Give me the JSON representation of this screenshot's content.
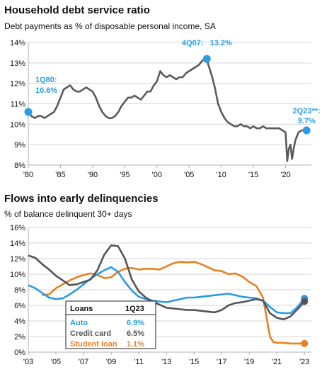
{
  "chart_data": [
    {
      "type": "line",
      "title": "Household debt service ratio",
      "subtitle": "Debt payments as % of disposable personal income, SA",
      "x_tick_labels": [
        "'80",
        "'85",
        "'90",
        "'95",
        "'00",
        "'05",
        "'10",
        "'15",
        "'20"
      ],
      "x_tick_years": [
        1980,
        1985,
        1990,
        1995,
        2000,
        2005,
        2010,
        2015,
        2020
      ],
      "xlim": [
        1980,
        2024
      ],
      "y_ticks": [
        8,
        9,
        10,
        11,
        12,
        13,
        14
      ],
      "y_tick_labels": [
        "8%",
        "9%",
        "10%",
        "11%",
        "12%",
        "13%",
        "14%"
      ],
      "ylim": [
        8,
        14
      ],
      "grid": true,
      "colors": {
        "line": "#5a5a5a",
        "marker": "#2a9be6"
      },
      "series": [
        {
          "x": [
            1980.0,
            1980.5,
            1981.0,
            1981.5,
            1982.0,
            1982.5,
            1983.0,
            1983.5,
            1984.0,
            1984.5,
            1985.0,
            1985.5,
            1986.0,
            1986.5,
            1987.0,
            1987.5,
            1988.0,
            1988.5,
            1989.0,
            1989.5,
            1990.0,
            1990.5,
            1991.0,
            1991.5,
            1992.0,
            1992.5,
            1993.0,
            1993.5,
            1994.0,
            1994.5,
            1995.0,
            1995.5,
            1996.0,
            1996.5,
            1997.0,
            1997.5,
            1998.0,
            1998.5,
            1999.0,
            1999.5,
            2000.0,
            2000.5,
            2001.0,
            2001.5,
            2002.0,
            2002.5,
            2003.0,
            2003.5,
            2004.0,
            2004.5,
            2005.0,
            2005.5,
            2006.0,
            2006.5,
            2007.0,
            2007.5,
            2007.75,
            2008.0,
            2008.5,
            2009.0,
            2009.5,
            2010.0,
            2010.5,
            2011.0,
            2011.5,
            2012.0,
            2012.5,
            2013.0,
            2013.5,
            2014.0,
            2014.5,
            2015.0,
            2015.5,
            2016.0,
            2016.5,
            2017.0,
            2017.5,
            2018.0,
            2018.5,
            2019.0,
            2019.5,
            2020.0,
            2020.25,
            2020.5,
            2020.75,
            2021.0,
            2021.25,
            2021.5,
            2022.0,
            2022.5,
            2023.0,
            2023.25
          ],
          "values": [
            10.6,
            10.4,
            10.3,
            10.4,
            10.4,
            10.3,
            10.4,
            10.5,
            10.6,
            10.9,
            11.3,
            11.7,
            11.8,
            11.9,
            11.7,
            11.6,
            11.6,
            11.7,
            11.8,
            11.7,
            11.6,
            11.3,
            10.9,
            10.6,
            10.4,
            10.3,
            10.3,
            10.4,
            10.6,
            10.9,
            11.1,
            11.3,
            11.3,
            11.4,
            11.3,
            11.2,
            11.4,
            11.6,
            11.6,
            11.9,
            12.1,
            12.6,
            12.4,
            12.3,
            12.4,
            12.3,
            12.2,
            12.3,
            12.3,
            12.5,
            12.6,
            12.7,
            12.8,
            12.9,
            13.1,
            13.2,
            13.2,
            12.9,
            12.4,
            11.8,
            11.0,
            10.6,
            10.3,
            10.1,
            10.0,
            9.9,
            9.9,
            10.0,
            9.9,
            9.9,
            9.8,
            9.9,
            9.8,
            9.8,
            9.9,
            9.8,
            9.8,
            9.8,
            9.8,
            9.8,
            9.7,
            9.6,
            8.2,
            8.8,
            9.0,
            8.3,
            8.8,
            9.2,
            9.6,
            9.7,
            9.7,
            9.7
          ]
        }
      ],
      "annotations": [
        {
          "label": "1Q80:",
          "value_label": "10.6%",
          "x": 1980.0,
          "y": 10.6
        },
        {
          "label": "4Q07:",
          "value_label": "13.2%",
          "x": 2007.75,
          "y": 13.2
        },
        {
          "label": "2Q23**:",
          "value_label": "9.7%",
          "x": 2023.25,
          "y": 9.7
        }
      ]
    },
    {
      "type": "line",
      "title": "Flows into early delinquencies",
      "subtitle": "% of balance delinquent 30+ days",
      "x_tick_labels": [
        "'03",
        "'05",
        "'07",
        "'09",
        "'11",
        "'13",
        "'15",
        "'17",
        "'19",
        "'21",
        "'23"
      ],
      "x_tick_years": [
        2003,
        2005,
        2007,
        2009,
        2011,
        2013,
        2015,
        2017,
        2019,
        2021,
        2023
      ],
      "xlim": [
        2003,
        2023.5
      ],
      "y_ticks": [
        0,
        2,
        4,
        6,
        8,
        10,
        12,
        14,
        16
      ],
      "y_tick_labels": [
        "0%",
        "2%",
        "4%",
        "6%",
        "8%",
        "10%",
        "12%",
        "14%",
        "16%"
      ],
      "ylim": [
        0,
        16
      ],
      "grid": true,
      "series": [
        {
          "name": "Auto",
          "color": "#2a9be6",
          "x": [
            2003.0,
            2003.5,
            2004.0,
            2004.5,
            2005.0,
            2005.5,
            2006.0,
            2006.5,
            2007.0,
            2007.5,
            2008.0,
            2008.5,
            2009.0,
            2009.5,
            2010.0,
            2010.5,
            2011.0,
            2011.5,
            2012.0,
            2012.5,
            2013.0,
            2013.5,
            2014.0,
            2014.5,
            2015.0,
            2015.5,
            2016.0,
            2016.5,
            2017.0,
            2017.5,
            2018.0,
            2018.5,
            2019.0,
            2019.5,
            2020.0,
            2020.5,
            2021.0,
            2021.5,
            2022.0,
            2022.5,
            2023.0
          ],
          "values": [
            8.6,
            8.2,
            7.6,
            7.0,
            6.8,
            6.9,
            7.4,
            8.0,
            8.7,
            9.4,
            10.0,
            10.5,
            10.9,
            10.3,
            9.0,
            7.9,
            7.1,
            6.8,
            6.6,
            6.5,
            6.4,
            6.6,
            6.8,
            7.0,
            7.0,
            7.1,
            7.2,
            7.3,
            7.4,
            7.5,
            7.3,
            7.1,
            7.0,
            6.9,
            6.6,
            5.8,
            5.1,
            5.0,
            5.0,
            5.8,
            6.9
          ]
        },
        {
          "name": "Credit card",
          "color": "#555555",
          "x": [
            2003.0,
            2003.5,
            2004.0,
            2004.5,
            2005.0,
            2005.5,
            2006.0,
            2006.5,
            2007.0,
            2007.5,
            2008.0,
            2008.5,
            2009.0,
            2009.5,
            2010.0,
            2010.5,
            2011.0,
            2011.5,
            2012.0,
            2012.5,
            2013.0,
            2013.5,
            2014.0,
            2014.5,
            2015.0,
            2015.5,
            2016.0,
            2016.5,
            2017.0,
            2017.5,
            2018.0,
            2018.5,
            2019.0,
            2019.5,
            2020.0,
            2020.5,
            2021.0,
            2021.5,
            2022.0,
            2022.5,
            2023.0
          ],
          "values": [
            12.4,
            12.1,
            11.3,
            10.6,
            9.8,
            9.2,
            8.6,
            8.7,
            9.0,
            9.3,
            10.5,
            12.5,
            13.7,
            13.6,
            12.0,
            9.3,
            7.8,
            7.0,
            6.5,
            6.1,
            5.7,
            5.6,
            5.5,
            5.4,
            5.4,
            5.3,
            5.2,
            5.1,
            5.4,
            6.0,
            6.3,
            6.4,
            6.6,
            6.8,
            6.6,
            5.0,
            4.4,
            4.2,
            4.6,
            5.5,
            6.5
          ]
        },
        {
          "name": "Student loan",
          "color": "#e8801c",
          "x": [
            2004.0,
            2004.5,
            2005.0,
            2005.5,
            2006.0,
            2006.5,
            2007.0,
            2007.5,
            2008.0,
            2008.5,
            2009.0,
            2009.5,
            2010.0,
            2010.5,
            2011.0,
            2011.5,
            2012.0,
            2012.5,
            2013.0,
            2013.5,
            2014.0,
            2014.5,
            2015.0,
            2015.5,
            2016.0,
            2016.5,
            2017.0,
            2017.5,
            2018.0,
            2018.5,
            2019.0,
            2019.5,
            2020.0,
            2020.25,
            2020.5,
            2020.75,
            2021.0,
            2021.5,
            2022.0,
            2022.5,
            2023.0
          ],
          "values": [
            7.3,
            7.4,
            8.2,
            8.7,
            9.2,
            9.6,
            9.9,
            10.1,
            9.9,
            9.5,
            9.6,
            10.3,
            10.7,
            10.8,
            10.6,
            10.7,
            10.7,
            10.6,
            11.0,
            11.4,
            11.6,
            11.5,
            11.6,
            11.3,
            10.9,
            10.5,
            10.4,
            10.0,
            10.1,
            9.7,
            9.0,
            8.5,
            7.0,
            4.5,
            2.0,
            1.3,
            1.2,
            1.2,
            1.1,
            1.1,
            1.1
          ]
        }
      ],
      "legend": {
        "placement": "bottom-left",
        "header": [
          "Loans",
          "1Q23"
        ],
        "rows": [
          {
            "name": "Auto",
            "value": "6.9%"
          },
          {
            "name": "Credit card",
            "value": "6.5%"
          },
          {
            "name": "Student loan",
            "value": "1.1%"
          }
        ]
      }
    }
  ]
}
